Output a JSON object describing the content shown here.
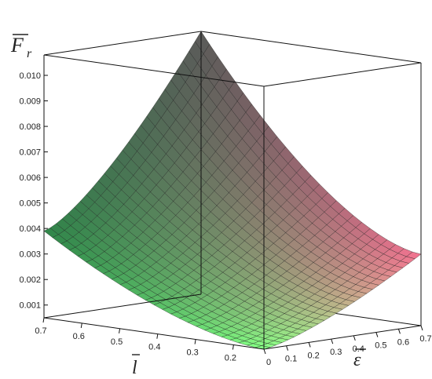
{
  "chart_data": {
    "type": "surface3d",
    "title": "",
    "zlabel": {
      "text": "F",
      "sub": "r",
      "overbar": true
    },
    "xlabel": {
      "text": "l",
      "overbar": true
    },
    "ylabel": {
      "text": "ε",
      "overbar": true
    },
    "x_axis": {
      "range": [
        0.12,
        0.7
      ],
      "ticks": [
        "0.7",
        "0.6",
        "0.5",
        "0.4",
        "0.3",
        "0.2"
      ]
    },
    "y_axis": {
      "range": [
        0,
        0.7
      ],
      "ticks": [
        "0",
        "0.1",
        "0.2",
        "0.3",
        "0.4",
        "0.5",
        "0.6",
        "0.7"
      ]
    },
    "z_axis": {
      "range": [
        0.0005,
        0.0108
      ],
      "ticks": [
        "0.001",
        "0.002",
        "0.003",
        "0.004",
        "0.005",
        "0.006",
        "0.007",
        "0.008",
        "0.009",
        "0.010"
      ]
    },
    "corner_values": [
      {
        "l": 0.7,
        "eps": 0,
        "F": 0.0039
      },
      {
        "l": 0.12,
        "eps": 0,
        "F": 0.0005
      },
      {
        "l": 0.7,
        "eps": 0.7,
        "F": 0.0108
      },
      {
        "l": 0.12,
        "eps": 0.7,
        "F": 0.0033
      }
    ],
    "grid": true,
    "colors": {
      "low_l_low_eps": "#7af07a",
      "high_l_low_eps": "#3aa35a",
      "high_l_high_eps": "#7a7a78",
      "low_l_high_eps": "#f0708e",
      "mesh": "#1a1a1a",
      "box": "#111111"
    }
  }
}
